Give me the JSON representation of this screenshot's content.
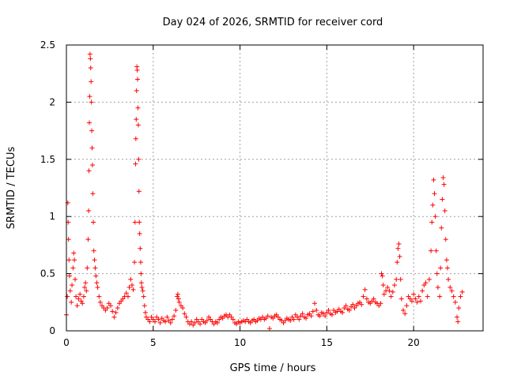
{
  "chart_data": {
    "type": "scatter",
    "title": "Day 024 of 2026, SRMTID for receiver cord",
    "xlabel": "GPS time / hours",
    "ylabel": "SRMTID / TECUs",
    "xlim": [
      0,
      24
    ],
    "ylim": [
      0,
      2.5
    ],
    "xticks": [
      0,
      5,
      10,
      15,
      20
    ],
    "yticks": [
      0,
      0.5,
      1,
      1.5,
      2,
      2.5
    ],
    "xtick_labels": [
      "0",
      "5",
      "10",
      "15",
      "20"
    ],
    "ytick_labels": [
      "0",
      "0.5",
      "1",
      "1.5",
      "2",
      "2.5"
    ],
    "grid": true,
    "marker": "+",
    "series": [
      {
        "name": "SRMTID",
        "color": "#ff0000",
        "points": [
          [
            0.0,
            0.14
          ],
          [
            0.05,
            0.3
          ],
          [
            0.08,
            1.12
          ],
          [
            0.1,
            0.95
          ],
          [
            0.12,
            0.8
          ],
          [
            0.15,
            0.62
          ],
          [
            0.18,
            0.48
          ],
          [
            0.22,
            0.35
          ],
          [
            0.28,
            0.25
          ],
          [
            0.32,
            0.4
          ],
          [
            0.38,
            0.55
          ],
          [
            0.42,
            0.68
          ],
          [
            0.46,
            0.62
          ],
          [
            0.5,
            0.45
          ],
          [
            0.55,
            0.3
          ],
          [
            0.62,
            0.22
          ],
          [
            0.7,
            0.28
          ],
          [
            0.78,
            0.32
          ],
          [
            0.85,
            0.26
          ],
          [
            0.92,
            0.24
          ],
          [
            1.0,
            0.3
          ],
          [
            1.05,
            0.38
          ],
          [
            1.1,
            0.42
          ],
          [
            1.15,
            0.35
          ],
          [
            1.2,
            0.55
          ],
          [
            1.25,
            0.8
          ],
          [
            1.28,
            1.05
          ],
          [
            1.3,
            1.4
          ],
          [
            1.32,
            1.82
          ],
          [
            1.34,
            2.05
          ],
          [
            1.36,
            2.42
          ],
          [
            1.38,
            2.38
          ],
          [
            1.4,
            2.3
          ],
          [
            1.42,
            2.18
          ],
          [
            1.44,
            2.0
          ],
          [
            1.46,
            1.75
          ],
          [
            1.48,
            1.6
          ],
          [
            1.5,
            1.45
          ],
          [
            1.52,
            1.2
          ],
          [
            1.55,
            0.95
          ],
          [
            1.58,
            0.7
          ],
          [
            1.62,
            0.62
          ],
          [
            1.66,
            0.55
          ],
          [
            1.7,
            0.48
          ],
          [
            1.75,
            0.42
          ],
          [
            1.8,
            0.38
          ],
          [
            1.88,
            0.3
          ],
          [
            1.95,
            0.25
          ],
          [
            2.05,
            0.22
          ],
          [
            2.15,
            0.2
          ],
          [
            2.25,
            0.18
          ],
          [
            2.35,
            0.2
          ],
          [
            2.45,
            0.24
          ],
          [
            2.55,
            0.22
          ],
          [
            2.65,
            0.17
          ],
          [
            2.75,
            0.12
          ],
          [
            2.85,
            0.16
          ],
          [
            2.95,
            0.2
          ],
          [
            3.05,
            0.24
          ],
          [
            3.15,
            0.26
          ],
          [
            3.25,
            0.28
          ],
          [
            3.35,
            0.3
          ],
          [
            3.45,
            0.33
          ],
          [
            3.55,
            0.3
          ],
          [
            3.62,
            0.38
          ],
          [
            3.7,
            0.45
          ],
          [
            3.78,
            0.4
          ],
          [
            3.85,
            0.36
          ],
          [
            3.92,
            0.6
          ],
          [
            3.95,
            0.95
          ],
          [
            3.98,
            1.46
          ],
          [
            4.0,
            1.68
          ],
          [
            4.02,
            1.85
          ],
          [
            4.04,
            2.1
          ],
          [
            4.06,
            2.31
          ],
          [
            4.08,
            2.28
          ],
          [
            4.1,
            2.2
          ],
          [
            4.12,
            1.95
          ],
          [
            4.14,
            1.8
          ],
          [
            4.16,
            1.5
          ],
          [
            4.18,
            1.22
          ],
          [
            4.2,
            0.95
          ],
          [
            4.22,
            0.85
          ],
          [
            4.25,
            0.72
          ],
          [
            4.28,
            0.6
          ],
          [
            4.3,
            0.5
          ],
          [
            4.32,
            0.42
          ],
          [
            4.35,
            0.38
          ],
          [
            4.4,
            0.35
          ],
          [
            4.45,
            0.3
          ],
          [
            4.5,
            0.22
          ],
          [
            4.55,
            0.16
          ],
          [
            4.6,
            0.12
          ],
          [
            4.7,
            0.1
          ],
          [
            4.8,
            0.08
          ],
          [
            4.9,
            0.12
          ],
          [
            5.0,
            0.1
          ],
          [
            5.1,
            0.08
          ],
          [
            5.2,
            0.12
          ],
          [
            5.3,
            0.1
          ],
          [
            5.4,
            0.07
          ],
          [
            5.5,
            0.11
          ],
          [
            5.6,
            0.09
          ],
          [
            5.7,
            0.08
          ],
          [
            5.8,
            0.12
          ],
          [
            5.9,
            0.09
          ],
          [
            6.0,
            0.07
          ],
          [
            6.1,
            0.1
          ],
          [
            6.2,
            0.13
          ],
          [
            6.3,
            0.18
          ],
          [
            6.38,
            0.3
          ],
          [
            6.42,
            0.32
          ],
          [
            6.46,
            0.28
          ],
          [
            6.5,
            0.25
          ],
          [
            6.6,
            0.22
          ],
          [
            6.7,
            0.2
          ],
          [
            6.8,
            0.15
          ],
          [
            6.9,
            0.12
          ],
          [
            7.0,
            0.08
          ],
          [
            7.1,
            0.06
          ],
          [
            7.2,
            0.08
          ],
          [
            7.3,
            0.05
          ],
          [
            7.4,
            0.07
          ],
          [
            7.5,
            0.1
          ],
          [
            7.6,
            0.08
          ],
          [
            7.7,
            0.06
          ],
          [
            7.8,
            0.1
          ],
          [
            7.9,
            0.08
          ],
          [
            8.0,
            0.07
          ],
          [
            8.1,
            0.09
          ],
          [
            8.2,
            0.12
          ],
          [
            8.3,
            0.1
          ],
          [
            8.4,
            0.08
          ],
          [
            8.5,
            0.06
          ],
          [
            8.6,
            0.08
          ],
          [
            8.7,
            0.07
          ],
          [
            8.8,
            0.1
          ],
          [
            8.9,
            0.12
          ],
          [
            9.0,
            0.11
          ],
          [
            9.1,
            0.13
          ],
          [
            9.2,
            0.14
          ],
          [
            9.3,
            0.12
          ],
          [
            9.4,
            0.14
          ],
          [
            9.5,
            0.12
          ],
          [
            9.6,
            0.1
          ],
          [
            9.7,
            0.07
          ],
          [
            9.8,
            0.06
          ],
          [
            9.9,
            0.08
          ],
          [
            10.0,
            0.07
          ],
          [
            10.1,
            0.08
          ],
          [
            10.2,
            0.09
          ],
          [
            10.3,
            0.08
          ],
          [
            10.4,
            0.1
          ],
          [
            10.5,
            0.08
          ],
          [
            10.6,
            0.07
          ],
          [
            10.7,
            0.09
          ],
          [
            10.8,
            0.1
          ],
          [
            10.9,
            0.08
          ],
          [
            11.0,
            0.09
          ],
          [
            11.1,
            0.11
          ],
          [
            11.2,
            0.1
          ],
          [
            11.3,
            0.12
          ],
          [
            11.4,
            0.1
          ],
          [
            11.5,
            0.11
          ],
          [
            11.6,
            0.13
          ],
          [
            11.7,
            0.02
          ],
          [
            11.8,
            0.12
          ],
          [
            11.9,
            0.11
          ],
          [
            12.0,
            0.13
          ],
          [
            12.1,
            0.14
          ],
          [
            12.2,
            0.12
          ],
          [
            12.3,
            0.1
          ],
          [
            12.4,
            0.09
          ],
          [
            12.5,
            0.07
          ],
          [
            12.6,
            0.09
          ],
          [
            12.7,
            0.11
          ],
          [
            12.8,
            0.1
          ],
          [
            12.9,
            0.09
          ],
          [
            13.0,
            0.12
          ],
          [
            13.1,
            0.1
          ],
          [
            13.2,
            0.14
          ],
          [
            13.3,
            0.12
          ],
          [
            13.4,
            0.1
          ],
          [
            13.5,
            0.13
          ],
          [
            13.6,
            0.15
          ],
          [
            13.7,
            0.12
          ],
          [
            13.8,
            0.11
          ],
          [
            13.9,
            0.14
          ],
          [
            14.0,
            0.15
          ],
          [
            14.1,
            0.13
          ],
          [
            14.2,
            0.17
          ],
          [
            14.3,
            0.24
          ],
          [
            14.4,
            0.18
          ],
          [
            14.5,
            0.14
          ],
          [
            14.6,
            0.13
          ],
          [
            14.7,
            0.16
          ],
          [
            14.8,
            0.15
          ],
          [
            14.9,
            0.13
          ],
          [
            15.0,
            0.16
          ],
          [
            15.1,
            0.18
          ],
          [
            15.2,
            0.15
          ],
          [
            15.3,
            0.14
          ],
          [
            15.4,
            0.18
          ],
          [
            15.5,
            0.16
          ],
          [
            15.6,
            0.17
          ],
          [
            15.7,
            0.19
          ],
          [
            15.8,
            0.17
          ],
          [
            15.9,
            0.16
          ],
          [
            16.0,
            0.2
          ],
          [
            16.1,
            0.22
          ],
          [
            16.2,
            0.19
          ],
          [
            16.3,
            0.18
          ],
          [
            16.4,
            0.21
          ],
          [
            16.5,
            0.23
          ],
          [
            16.6,
            0.2
          ],
          [
            16.7,
            0.22
          ],
          [
            16.8,
            0.24
          ],
          [
            16.9,
            0.25
          ],
          [
            17.0,
            0.23
          ],
          [
            17.1,
            0.3
          ],
          [
            17.2,
            0.36
          ],
          [
            17.3,
            0.28
          ],
          [
            17.4,
            0.25
          ],
          [
            17.5,
            0.24
          ],
          [
            17.6,
            0.26
          ],
          [
            17.7,
            0.28
          ],
          [
            17.8,
            0.25
          ],
          [
            17.9,
            0.24
          ],
          [
            18.0,
            0.22
          ],
          [
            18.1,
            0.24
          ],
          [
            18.15,
            0.5
          ],
          [
            18.2,
            0.48
          ],
          [
            18.25,
            0.4
          ],
          [
            18.3,
            0.32
          ],
          [
            18.4,
            0.35
          ],
          [
            18.5,
            0.38
          ],
          [
            18.6,
            0.35
          ],
          [
            18.7,
            0.3
          ],
          [
            18.8,
            0.34
          ],
          [
            18.9,
            0.4
          ],
          [
            19.0,
            0.45
          ],
          [
            19.05,
            0.6
          ],
          [
            19.1,
            0.72
          ],
          [
            19.15,
            0.76
          ],
          [
            19.2,
            0.65
          ],
          [
            19.25,
            0.45
          ],
          [
            19.3,
            0.28
          ],
          [
            19.4,
            0.18
          ],
          [
            19.5,
            0.15
          ],
          [
            19.6,
            0.22
          ],
          [
            19.7,
            0.3
          ],
          [
            19.8,
            0.28
          ],
          [
            19.9,
            0.26
          ],
          [
            20.0,
            0.32
          ],
          [
            20.1,
            0.28
          ],
          [
            20.2,
            0.25
          ],
          [
            20.3,
            0.3
          ],
          [
            20.4,
            0.26
          ],
          [
            20.5,
            0.35
          ],
          [
            20.6,
            0.4
          ],
          [
            20.7,
            0.42
          ],
          [
            20.8,
            0.3
          ],
          [
            20.9,
            0.45
          ],
          [
            21.0,
            0.7
          ],
          [
            21.05,
            0.95
          ],
          [
            21.1,
            1.1
          ],
          [
            21.15,
            1.32
          ],
          [
            21.2,
            1.2
          ],
          [
            21.25,
            1.0
          ],
          [
            21.3,
            0.7
          ],
          [
            21.35,
            0.5
          ],
          [
            21.4,
            0.38
          ],
          [
            21.5,
            0.3
          ],
          [
            21.55,
            0.55
          ],
          [
            21.6,
            0.9
          ],
          [
            21.65,
            1.15
          ],
          [
            21.7,
            1.34
          ],
          [
            21.75,
            1.28
          ],
          [
            21.8,
            1.05
          ],
          [
            21.85,
            0.8
          ],
          [
            21.9,
            0.62
          ],
          [
            21.95,
            0.55
          ],
          [
            22.0,
            0.45
          ],
          [
            22.1,
            0.38
          ],
          [
            22.2,
            0.35
          ],
          [
            22.3,
            0.3
          ],
          [
            22.4,
            0.25
          ],
          [
            22.5,
            0.12
          ],
          [
            22.55,
            0.08
          ],
          [
            22.6,
            0.2
          ],
          [
            22.7,
            0.3
          ],
          [
            22.8,
            0.34
          ]
        ]
      }
    ]
  }
}
